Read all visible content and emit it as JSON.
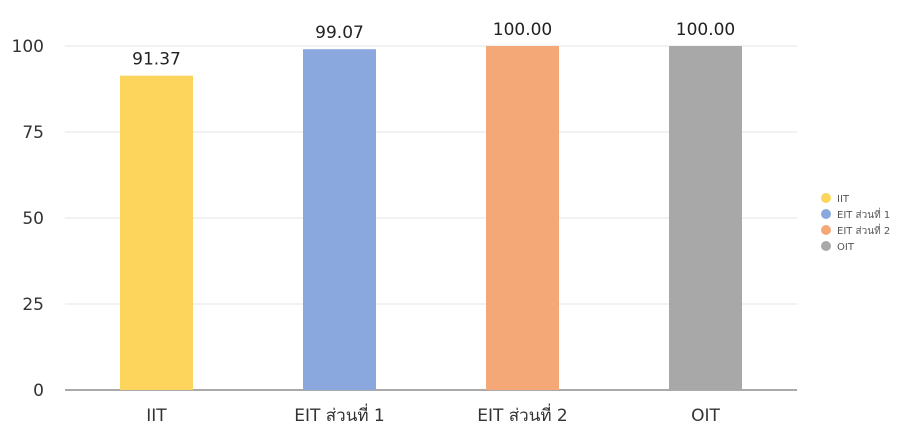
{
  "chart_data": {
    "type": "bar",
    "categories": [
      "IIT",
      "EIT ส่วนที่ 1",
      "EIT ส่วนที่ 2",
      "OIT"
    ],
    "values": [
      91.37,
      99.07,
      100.0,
      100.0
    ],
    "data_labels": [
      "91.37",
      "99.07",
      "100.00",
      "100.00"
    ],
    "colors": [
      "#FDD45C",
      "#8AA8DE",
      "#F4A877",
      "#A8A8A8"
    ],
    "title": "",
    "xlabel": "",
    "ylabel": "",
    "ylim": [
      0,
      100
    ],
    "yticks": [
      0,
      25,
      50,
      75,
      100
    ],
    "ytick_labels": [
      "0",
      "25",
      "50",
      "75",
      "100"
    ],
    "grid": true,
    "legend": {
      "position": "right",
      "entries": [
        "IIT",
        "EIT ส่วนที่ 1",
        "EIT ส่วนที่ 2",
        "OIT"
      ]
    }
  }
}
